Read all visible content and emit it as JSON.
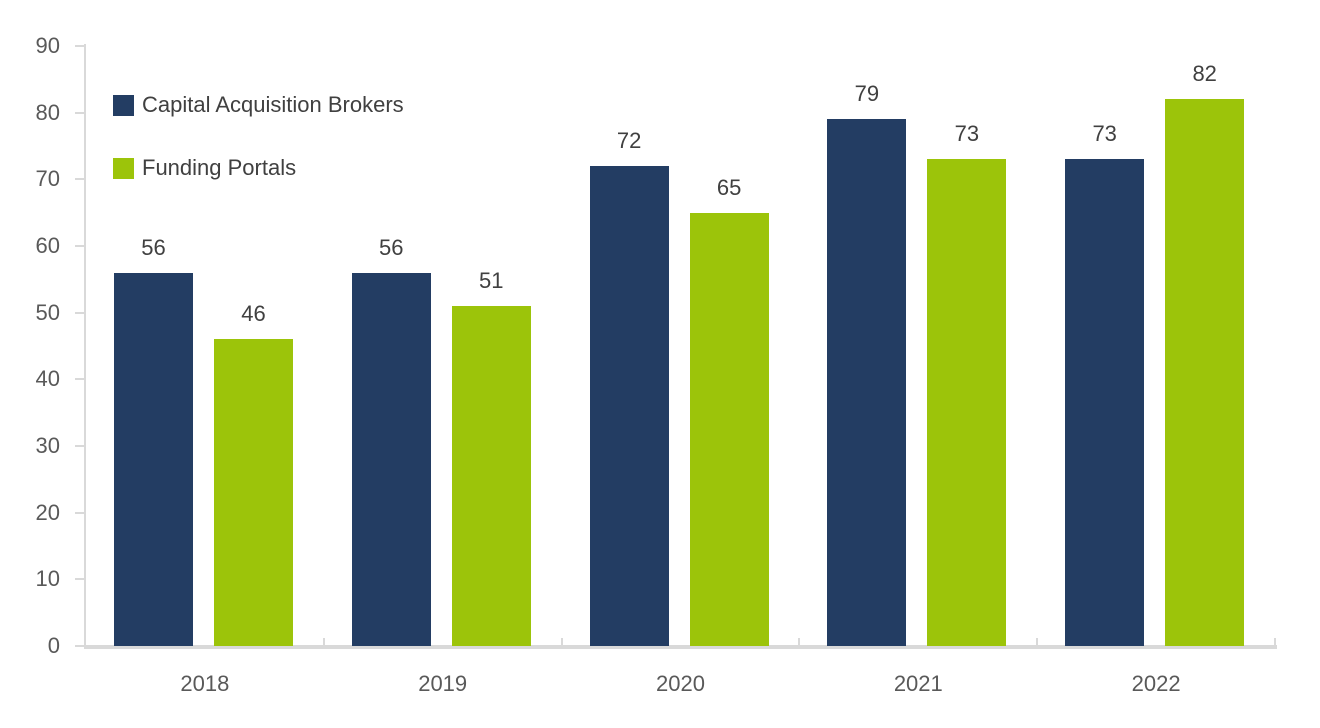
{
  "chart_data": {
    "type": "bar",
    "title": "",
    "xlabel": "",
    "ylabel": "",
    "categories": [
      "2018",
      "2019",
      "2020",
      "2021",
      "2022"
    ],
    "series": [
      {
        "name": "Capital Acquisition Brokers",
        "color": "#233d63",
        "values": [
          56,
          56,
          72,
          79,
          73
        ]
      },
      {
        "name": "Funding Portals",
        "color": "#9cc40a",
        "values": [
          46,
          51,
          65,
          73,
          82
        ]
      }
    ],
    "ylim": [
      0,
      90
    ],
    "ytick_step": 10,
    "y_tick_labels": [
      "0",
      "10",
      "20",
      "30",
      "40",
      "50",
      "60",
      "70",
      "80",
      "90"
    ],
    "grid": false,
    "legend_position": "top-left",
    "data_labels": true
  },
  "colors": {
    "axis": "#d9d9d9",
    "axis_label": "#595959",
    "data_label": "#404040",
    "background": "#ffffff"
  }
}
